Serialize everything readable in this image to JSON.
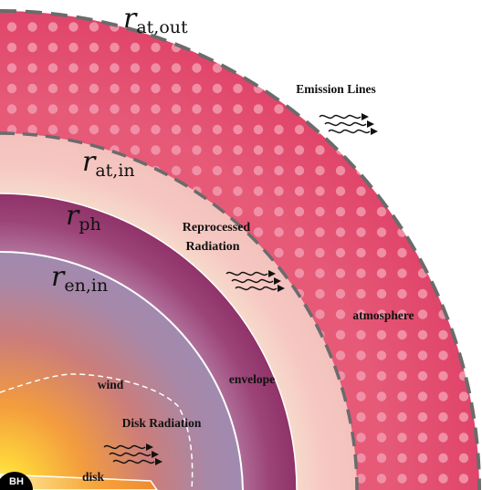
{
  "radius_labels": {
    "at_out": {
      "symbol": "r",
      "subscript": "at,out"
    },
    "at_in": {
      "symbol": "r",
      "subscript": "at,in"
    },
    "ph": {
      "symbol": "r",
      "subscript": "ph"
    },
    "en_in": {
      "symbol": "r",
      "subscript": "en,in"
    }
  },
  "region_labels": {
    "atmosphere": "atmosphere",
    "envelope": "envelope",
    "wind": "wind",
    "disk": "disk",
    "black_hole": "BH"
  },
  "process_labels": {
    "emission_lines": "Emission Lines",
    "reprocessed_line1": "Reprocessed",
    "reprocessed_line2": "Radiation",
    "disk_radiation": "Disk Radiation"
  },
  "colors": {
    "atmosphere": "#e2506f",
    "atmosphere_dots": "#f29aae",
    "inner_atmosphere_shell": "#f6c9c0",
    "envelope_outer": "#a23e6f",
    "envelope_inner": "#a57a9a",
    "core_hot": "#ffd23a",
    "core_mid": "#f29a3e",
    "black_hole": "#000000",
    "dashed_boundary": "#6b6b6b"
  }
}
